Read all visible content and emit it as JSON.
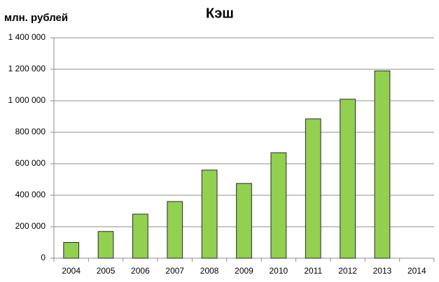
{
  "chart_data": {
    "type": "bar",
    "title": "Кэш",
    "y_label": "млн. рублей",
    "categories": [
      "2004",
      "2005",
      "2006",
      "2007",
      "2008",
      "2009",
      "2010",
      "2011",
      "2012",
      "2013",
      "2014"
    ],
    "values": [
      100000,
      170000,
      280000,
      360000,
      560000,
      475000,
      670000,
      885000,
      1010000,
      1190000,
      null
    ],
    "color": "#92d050",
    "ylim": [
      0,
      1400000
    ],
    "yticks": [
      0,
      {
        "value": 200000,
        "label": "200 000"
      },
      {
        "value": 400000,
        "label": "400 000"
      },
      {
        "value": 600000,
        "label": "600 000"
      },
      {
        "value": 800000,
        "label": "800 000"
      },
      {
        "value": 1000000,
        "label": "1 000 000"
      },
      {
        "value": 1200000,
        "label": "1 200 000"
      },
      {
        "value": 1400000,
        "label": "1 400 000"
      }
    ],
    "grid": true
  }
}
